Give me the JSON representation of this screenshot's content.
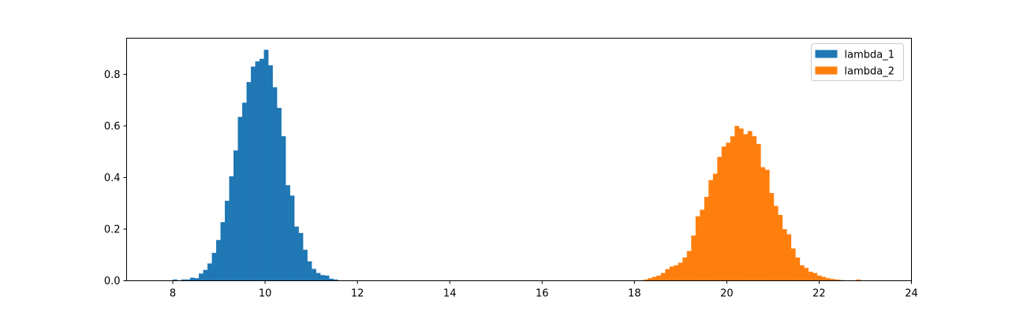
{
  "chart_data": {
    "type": "bar",
    "title": "",
    "xlabel": "",
    "ylabel": "",
    "xlim": [
      7.0,
      24.0
    ],
    "ylim": [
      0.0,
      0.94
    ],
    "xticks": [
      8,
      10,
      12,
      14,
      16,
      18,
      20,
      22,
      24
    ],
    "yticks": [
      0.0,
      0.2,
      0.4,
      0.6,
      0.8
    ],
    "grid": false,
    "legend_position": "top-right",
    "series": [
      {
        "name": "lambda_1",
        "color": "#1f77b4",
        "bin_width": 0.094,
        "bins": [
          {
            "x": 8.0,
            "y": 0.005
          },
          {
            "x": 8.094,
            "y": 0.0
          },
          {
            "x": 8.188,
            "y": 0.005
          },
          {
            "x": 8.282,
            "y": 0.005
          },
          {
            "x": 8.376,
            "y": 0.012
          },
          {
            "x": 8.47,
            "y": 0.01
          },
          {
            "x": 8.564,
            "y": 0.028
          },
          {
            "x": 8.658,
            "y": 0.042
          },
          {
            "x": 8.752,
            "y": 0.067
          },
          {
            "x": 8.846,
            "y": 0.108
          },
          {
            "x": 8.94,
            "y": 0.158
          },
          {
            "x": 9.034,
            "y": 0.227
          },
          {
            "x": 9.128,
            "y": 0.31
          },
          {
            "x": 9.222,
            "y": 0.405
          },
          {
            "x": 9.316,
            "y": 0.505
          },
          {
            "x": 9.41,
            "y": 0.635
          },
          {
            "x": 9.504,
            "y": 0.69
          },
          {
            "x": 9.598,
            "y": 0.77
          },
          {
            "x": 9.692,
            "y": 0.83
          },
          {
            "x": 9.786,
            "y": 0.85
          },
          {
            "x": 9.88,
            "y": 0.86
          },
          {
            "x": 9.974,
            "y": 0.895
          },
          {
            "x": 10.068,
            "y": 0.835
          },
          {
            "x": 10.162,
            "y": 0.75
          },
          {
            "x": 10.256,
            "y": 0.67
          },
          {
            "x": 10.35,
            "y": 0.56
          },
          {
            "x": 10.444,
            "y": 0.37
          },
          {
            "x": 10.538,
            "y": 0.33
          },
          {
            "x": 10.632,
            "y": 0.21
          },
          {
            "x": 10.726,
            "y": 0.185
          },
          {
            "x": 10.82,
            "y": 0.12
          },
          {
            "x": 10.914,
            "y": 0.075
          },
          {
            "x": 11.008,
            "y": 0.046
          },
          {
            "x": 11.102,
            "y": 0.03
          },
          {
            "x": 11.196,
            "y": 0.022
          },
          {
            "x": 11.29,
            "y": 0.02
          },
          {
            "x": 11.384,
            "y": 0.008
          },
          {
            "x": 11.478,
            "y": 0.005
          }
        ]
      },
      {
        "name": "lambda_2",
        "color": "#ff7f0e",
        "bin_width": 0.094,
        "bins": [
          {
            "x": 18.196,
            "y": 0.005
          },
          {
            "x": 18.29,
            "y": 0.01
          },
          {
            "x": 18.384,
            "y": 0.015
          },
          {
            "x": 18.478,
            "y": 0.02
          },
          {
            "x": 18.572,
            "y": 0.03
          },
          {
            "x": 18.666,
            "y": 0.045
          },
          {
            "x": 18.76,
            "y": 0.055
          },
          {
            "x": 18.854,
            "y": 0.06
          },
          {
            "x": 18.948,
            "y": 0.07
          },
          {
            "x": 19.042,
            "y": 0.09
          },
          {
            "x": 19.136,
            "y": 0.115
          },
          {
            "x": 19.23,
            "y": 0.175
          },
          {
            "x": 19.324,
            "y": 0.25
          },
          {
            "x": 19.418,
            "y": 0.275
          },
          {
            "x": 19.512,
            "y": 0.325
          },
          {
            "x": 19.606,
            "y": 0.39
          },
          {
            "x": 19.7,
            "y": 0.415
          },
          {
            "x": 19.794,
            "y": 0.48
          },
          {
            "x": 19.888,
            "y": 0.52
          },
          {
            "x": 19.982,
            "y": 0.535
          },
          {
            "x": 20.076,
            "y": 0.56
          },
          {
            "x": 20.17,
            "y": 0.6
          },
          {
            "x": 20.264,
            "y": 0.59
          },
          {
            "x": 20.358,
            "y": 0.568
          },
          {
            "x": 20.452,
            "y": 0.58
          },
          {
            "x": 20.546,
            "y": 0.56
          },
          {
            "x": 20.64,
            "y": 0.53
          },
          {
            "x": 20.734,
            "y": 0.44
          },
          {
            "x": 20.828,
            "y": 0.43
          },
          {
            "x": 20.922,
            "y": 0.34
          },
          {
            "x": 21.016,
            "y": 0.29
          },
          {
            "x": 21.11,
            "y": 0.255
          },
          {
            "x": 21.204,
            "y": 0.2
          },
          {
            "x": 21.298,
            "y": 0.18
          },
          {
            "x": 21.392,
            "y": 0.125
          },
          {
            "x": 21.486,
            "y": 0.09
          },
          {
            "x": 21.58,
            "y": 0.06
          },
          {
            "x": 21.674,
            "y": 0.05
          },
          {
            "x": 21.768,
            "y": 0.035
          },
          {
            "x": 21.862,
            "y": 0.03
          },
          {
            "x": 21.956,
            "y": 0.02
          },
          {
            "x": 22.05,
            "y": 0.015
          },
          {
            "x": 22.144,
            "y": 0.01
          },
          {
            "x": 22.238,
            "y": 0.007
          },
          {
            "x": 22.332,
            "y": 0.005
          },
          {
            "x": 22.426,
            "y": 0.003
          },
          {
            "x": 22.802,
            "y": 0.005
          }
        ]
      }
    ]
  }
}
